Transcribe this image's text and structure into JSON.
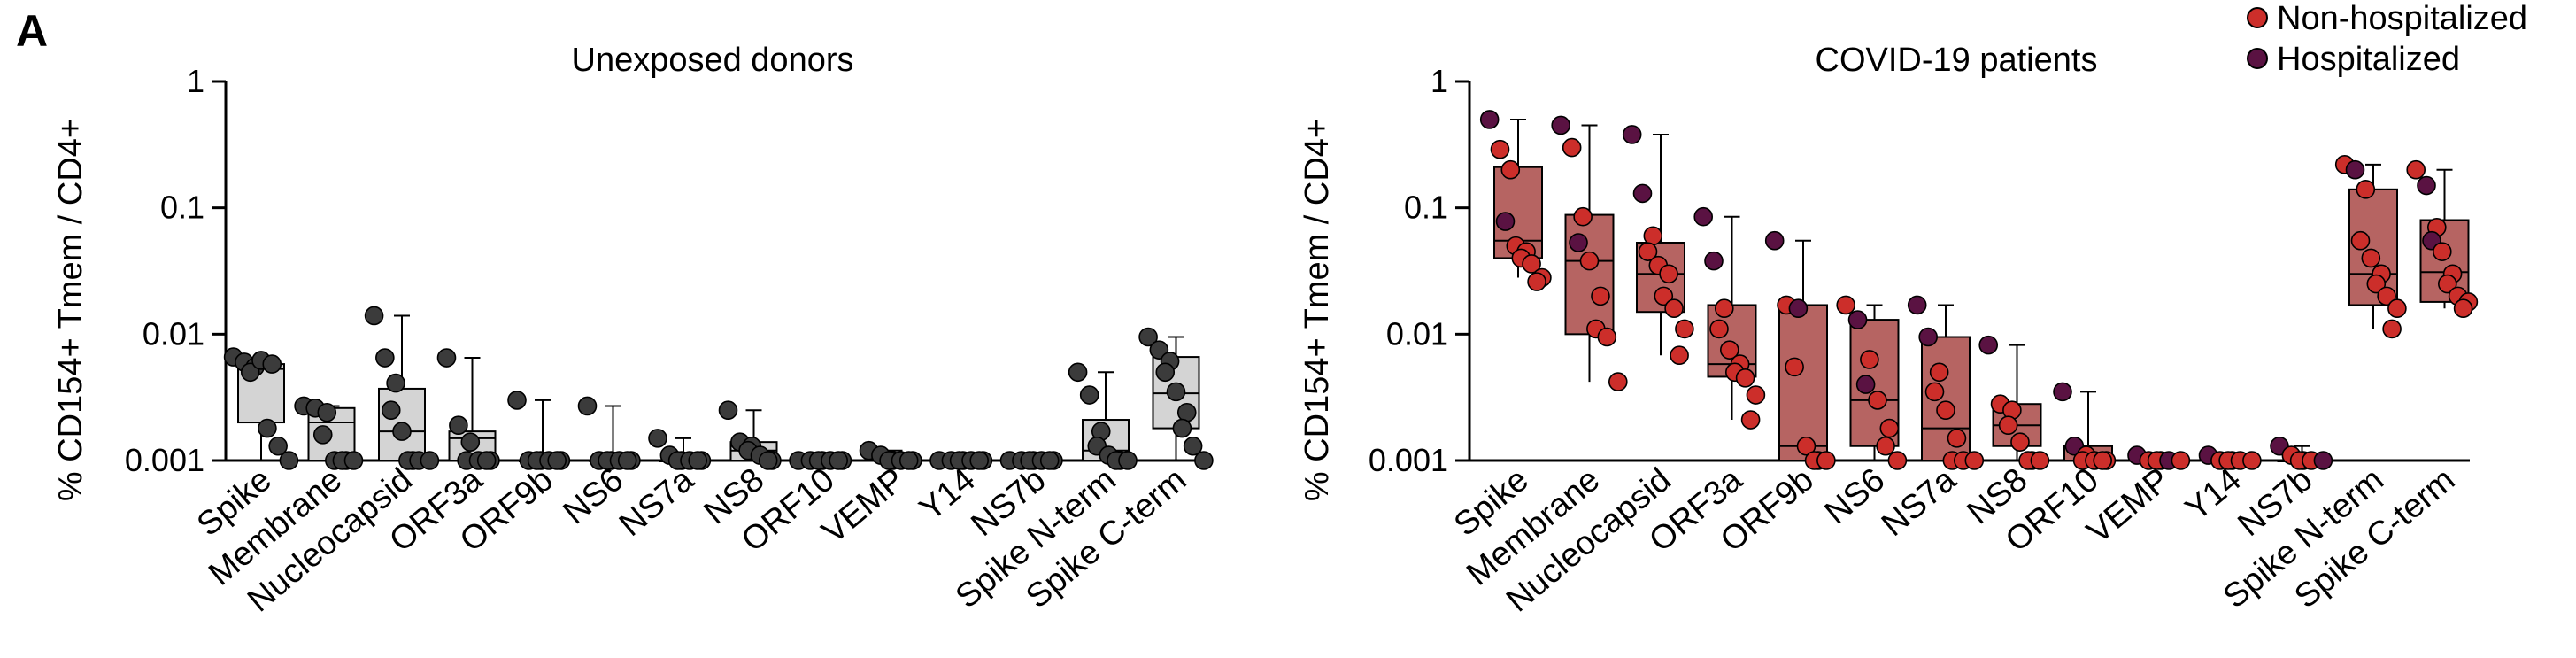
{
  "panel_label": "A",
  "chart_data": [
    {
      "type": "box",
      "title": "Unexposed donors",
      "xlabel": "",
      "ylabel": "% CD154+ Tmem / CD4+",
      "yscale": "log",
      "ylim": [
        0.001,
        1
      ],
      "yticks": [
        {
          "v": 0.001,
          "label": "0.001"
        },
        {
          "v": 0.01,
          "label": "0.01"
        },
        {
          "v": 0.1,
          "label": "0.1"
        },
        {
          "v": 1,
          "label": "1"
        }
      ],
      "grid": false,
      "box_color": "#d4d4d4",
      "point_color": "#3b3b3b",
      "categories": [
        "Spike",
        "Membrane",
        "Nucleocapsid",
        "ORF3a",
        "ORF9b",
        "NS6",
        "NS7a",
        "NS8",
        "ORF10",
        "VEMP",
        "Y14",
        "NS7b",
        "Spike N-term",
        "Spike C-term"
      ],
      "boxes": [
        {
          "min": 0.001,
          "q1": 0.002,
          "median": 0.0053,
          "q3": 0.0058,
          "max": 0.0065
        },
        {
          "min": 0.001,
          "q1": 0.001,
          "median": 0.002,
          "q3": 0.0026,
          "max": 0.0027
        },
        {
          "min": 0.001,
          "q1": 0.001,
          "median": 0.0017,
          "q3": 0.0037,
          "max": 0.014
        },
        {
          "min": 0.001,
          "q1": 0.001,
          "median": 0.0015,
          "q3": 0.0017,
          "max": 0.0065
        },
        {
          "min": 0.001,
          "q1": 0.001,
          "median": 0.001,
          "q3": 0.001,
          "max": 0.003
        },
        {
          "min": 0.001,
          "q1": 0.001,
          "median": 0.001,
          "q3": 0.001,
          "max": 0.0027
        },
        {
          "min": 0.001,
          "q1": 0.001,
          "median": 0.001,
          "q3": 0.001,
          "max": 0.0015
        },
        {
          "min": 0.001,
          "q1": 0.001,
          "median": 0.0012,
          "q3": 0.0014,
          "max": 0.0025
        },
        {
          "min": 0.001,
          "q1": 0.001,
          "median": 0.001,
          "q3": 0.001,
          "max": 0.001
        },
        {
          "min": 0.001,
          "q1": 0.001,
          "median": 0.001,
          "q3": 0.0011,
          "max": 0.0012
        },
        {
          "min": 0.001,
          "q1": 0.001,
          "median": 0.001,
          "q3": 0.001,
          "max": 0.001
        },
        {
          "min": 0.001,
          "q1": 0.001,
          "median": 0.001,
          "q3": 0.001,
          "max": 0.001
        },
        {
          "min": 0.001,
          "q1": 0.001,
          "median": 0.0012,
          "q3": 0.0021,
          "max": 0.005
        },
        {
          "min": 0.001,
          "q1": 0.0018,
          "median": 0.0034,
          "q3": 0.0066,
          "max": 0.0095
        }
      ],
      "points": [
        [
          0.0066,
          0.006,
          0.0055,
          0.005,
          0.0062,
          0.0058,
          0.0018,
          0.0013,
          0.001
        ],
        [
          0.0027,
          0.0026,
          0.0024,
          0.0016,
          0.001,
          0.001,
          0.001,
          0.001
        ],
        [
          0.014,
          0.0065,
          0.0041,
          0.0025,
          0.0017,
          0.001,
          0.001,
          0.001,
          0.001
        ],
        [
          0.0065,
          0.0019,
          0.0014,
          0.001,
          0.001,
          0.001,
          0.001
        ],
        [
          0.003,
          0.001,
          0.001,
          0.001,
          0.001,
          0.001,
          0.001
        ],
        [
          0.0027,
          0.001,
          0.001,
          0.001,
          0.001,
          0.001,
          0.001
        ],
        [
          0.0015,
          0.0011,
          0.001,
          0.001,
          0.001,
          0.001,
          0.001
        ],
        [
          0.0025,
          0.0014,
          0.0013,
          0.0012,
          0.0011,
          0.001,
          0.001
        ],
        [
          0.001,
          0.001,
          0.001,
          0.001,
          0.001,
          0.001,
          0.001
        ],
        [
          0.0012,
          0.0011,
          0.001,
          0.001,
          0.001,
          0.001,
          0.001
        ],
        [
          0.001,
          0.001,
          0.001,
          0.001,
          0.001,
          0.001,
          0.001
        ],
        [
          0.001,
          0.001,
          0.001,
          0.001,
          0.001,
          0.001,
          0.001
        ],
        [
          0.005,
          0.0033,
          0.0017,
          0.0013,
          0.0011,
          0.001,
          0.001,
          0.001
        ],
        [
          0.0095,
          0.0075,
          0.0061,
          0.005,
          0.0035,
          0.0024,
          0.0018,
          0.0013,
          0.001
        ]
      ]
    },
    {
      "type": "box",
      "title": "COVID-19 patients",
      "xlabel": "",
      "ylabel": "% CD154+ Tmem / CD4+",
      "yscale": "log",
      "ylim": [
        0.001,
        1
      ],
      "yticks": [
        {
          "v": 0.001,
          "label": "0.001"
        },
        {
          "v": 0.01,
          "label": "0.01"
        },
        {
          "v": 0.1,
          "label": "0.1"
        },
        {
          "v": 1,
          "label": "1"
        }
      ],
      "grid": false,
      "box_color": "#b66462",
      "legend": {
        "position": "top-right",
        "entries": [
          {
            "name": "Non-hospitalized",
            "color": "#cc2e2a"
          },
          {
            "name": "Hospitalized",
            "color": "#5a1242"
          }
        ]
      },
      "categories": [
        "Spike",
        "Membrane",
        "Nucleocapsid",
        "ORF3a",
        "ORF9b",
        "NS6",
        "NS7a",
        "NS8",
        "ORF10",
        "VEMP",
        "Y14",
        "NS7b",
        "Spike N-term",
        "Spike C-term"
      ],
      "boxes": [
        {
          "min": 0.028,
          "q1": 0.04,
          "median": 0.055,
          "q3": 0.21,
          "max": 0.5
        },
        {
          "min": 0.0042,
          "q1": 0.01,
          "median": 0.038,
          "q3": 0.088,
          "max": 0.45
        },
        {
          "min": 0.0068,
          "q1": 0.015,
          "median": 0.03,
          "q3": 0.053,
          "max": 0.38
        },
        {
          "min": 0.0021,
          "q1": 0.0046,
          "median": 0.0058,
          "q3": 0.017,
          "max": 0.085
        },
        {
          "min": 0.001,
          "q1": 0.001,
          "median": 0.0013,
          "q3": 0.017,
          "max": 0.055
        },
        {
          "min": 0.001,
          "q1": 0.0013,
          "median": 0.003,
          "q3": 0.013,
          "max": 0.017
        },
        {
          "min": 0.001,
          "q1": 0.001,
          "median": 0.0018,
          "q3": 0.0095,
          "max": 0.017
        },
        {
          "min": 0.001,
          "q1": 0.0013,
          "median": 0.0019,
          "q3": 0.0028,
          "max": 0.0082
        },
        {
          "min": 0.001,
          "q1": 0.001,
          "median": 0.001,
          "q3": 0.0013,
          "max": 0.0035
        },
        {
          "min": 0.001,
          "q1": 0.001,
          "median": 0.001,
          "q3": 0.001,
          "max": 0.0011
        },
        {
          "min": 0.001,
          "q1": 0.001,
          "median": 0.001,
          "q3": 0.001,
          "max": 0.0011
        },
        {
          "min": 0.001,
          "q1": 0.001,
          "median": 0.001,
          "q3": 0.001,
          "max": 0.0013
        },
        {
          "min": 0.011,
          "q1": 0.017,
          "median": 0.03,
          "q3": 0.14,
          "max": 0.22
        },
        {
          "min": 0.016,
          "q1": 0.018,
          "median": 0.031,
          "q3": 0.08,
          "max": 0.2
        }
      ],
      "points": [
        [
          {
            "y": 0.5,
            "g": 1
          },
          {
            "y": 0.29,
            "g": 0
          },
          {
            "y": 0.2,
            "g": 0
          },
          {
            "y": 0.078,
            "g": 1
          },
          {
            "y": 0.05,
            "g": 0
          },
          {
            "y": 0.045,
            "g": 0
          },
          {
            "y": 0.04,
            "g": 0
          },
          {
            "y": 0.036,
            "g": 0
          },
          {
            "y": 0.028,
            "g": 0
          },
          {
            "y": 0.026,
            "g": 0
          }
        ],
        [
          {
            "y": 0.45,
            "g": 1
          },
          {
            "y": 0.3,
            "g": 0
          },
          {
            "y": 0.085,
            "g": 0
          },
          {
            "y": 0.053,
            "g": 1
          },
          {
            "y": 0.038,
            "g": 0
          },
          {
            "y": 0.02,
            "g": 0
          },
          {
            "y": 0.011,
            "g": 0
          },
          {
            "y": 0.0095,
            "g": 0
          },
          {
            "y": 0.0042,
            "g": 0
          }
        ],
        [
          {
            "y": 0.38,
            "g": 1
          },
          {
            "y": 0.13,
            "g": 1
          },
          {
            "y": 0.06,
            "g": 0
          },
          {
            "y": 0.045,
            "g": 0
          },
          {
            "y": 0.035,
            "g": 0
          },
          {
            "y": 0.03,
            "g": 0
          },
          {
            "y": 0.02,
            "g": 0
          },
          {
            "y": 0.016,
            "g": 0
          },
          {
            "y": 0.011,
            "g": 0
          },
          {
            "y": 0.0068,
            "g": 0
          }
        ],
        [
          {
            "y": 0.085,
            "g": 1
          },
          {
            "y": 0.038,
            "g": 1
          },
          {
            "y": 0.016,
            "g": 0
          },
          {
            "y": 0.011,
            "g": 0
          },
          {
            "y": 0.0075,
            "g": 0
          },
          {
            "y": 0.0058,
            "g": 0
          },
          {
            "y": 0.005,
            "g": 0
          },
          {
            "y": 0.0045,
            "g": 0
          },
          {
            "y": 0.0033,
            "g": 0
          },
          {
            "y": 0.0021,
            "g": 0
          }
        ],
        [
          {
            "y": 0.055,
            "g": 1
          },
          {
            "y": 0.017,
            "g": 0
          },
          {
            "y": 0.016,
            "g": 1
          },
          {
            "y": 0.0055,
            "g": 0
          },
          {
            "y": 0.0013,
            "g": 0
          },
          {
            "y": 0.001,
            "g": 0
          },
          {
            "y": 0.001,
            "g": 0
          },
          {
            "y": 0.001,
            "g": 0
          }
        ],
        [
          {
            "y": 0.017,
            "g": 0
          },
          {
            "y": 0.013,
            "g": 1
          },
          {
            "y": 0.0063,
            "g": 0
          },
          {
            "y": 0.004,
            "g": 1
          },
          {
            "y": 0.003,
            "g": 0
          },
          {
            "y": 0.0018,
            "g": 0
          },
          {
            "y": 0.0013,
            "g": 0
          },
          {
            "y": 0.001,
            "g": 0
          }
        ],
        [
          {
            "y": 0.017,
            "g": 1
          },
          {
            "y": 0.0095,
            "g": 1
          },
          {
            "y": 0.005,
            "g": 0
          },
          {
            "y": 0.0035,
            "g": 0
          },
          {
            "y": 0.0025,
            "g": 0
          },
          {
            "y": 0.0015,
            "g": 0
          },
          {
            "y": 0.001,
            "g": 0
          },
          {
            "y": 0.001,
            "g": 0
          },
          {
            "y": 0.001,
            "g": 0
          }
        ],
        [
          {
            "y": 0.0082,
            "g": 1
          },
          {
            "y": 0.0028,
            "g": 0
          },
          {
            "y": 0.0025,
            "g": 0
          },
          {
            "y": 0.0019,
            "g": 0
          },
          {
            "y": 0.0014,
            "g": 0
          },
          {
            "y": 0.001,
            "g": 0
          },
          {
            "y": 0.001,
            "g": 0
          },
          {
            "y": 0.001,
            "g": 0
          }
        ],
        [
          {
            "y": 0.0035,
            "g": 1
          },
          {
            "y": 0.0013,
            "g": 1
          },
          {
            "y": 0.0011,
            "g": 0
          },
          {
            "y": 0.001,
            "g": 0
          },
          {
            "y": 0.001,
            "g": 0
          },
          {
            "y": 0.001,
            "g": 0
          },
          {
            "y": 0.001,
            "g": 0
          }
        ],
        [
          {
            "y": 0.0011,
            "g": 1
          },
          {
            "y": 0.001,
            "g": 0
          },
          {
            "y": 0.001,
            "g": 0
          },
          {
            "y": 0.001,
            "g": 0
          },
          {
            "y": 0.001,
            "g": 1
          },
          {
            "y": 0.001,
            "g": 0
          }
        ],
        [
          {
            "y": 0.0011,
            "g": 1
          },
          {
            "y": 0.001,
            "g": 0
          },
          {
            "y": 0.001,
            "g": 0
          },
          {
            "y": 0.001,
            "g": 0
          },
          {
            "y": 0.001,
            "g": 0
          },
          {
            "y": 0.001,
            "g": 0
          }
        ],
        [
          {
            "y": 0.0013,
            "g": 1
          },
          {
            "y": 0.0011,
            "g": 0
          },
          {
            "y": 0.001,
            "g": 0
          },
          {
            "y": 0.001,
            "g": 0
          },
          {
            "y": 0.001,
            "g": 0
          },
          {
            "y": 0.001,
            "g": 1
          }
        ],
        [
          {
            "y": 0.22,
            "g": 0
          },
          {
            "y": 0.2,
            "g": 1
          },
          {
            "y": 0.14,
            "g": 0
          },
          {
            "y": 0.055,
            "g": 0
          },
          {
            "y": 0.04,
            "g": 0
          },
          {
            "y": 0.03,
            "g": 0
          },
          {
            "y": 0.025,
            "g": 0
          },
          {
            "y": 0.02,
            "g": 0
          },
          {
            "y": 0.016,
            "g": 0
          },
          {
            "y": 0.011,
            "g": 0
          }
        ],
        [
          {
            "y": 0.2,
            "g": 0
          },
          {
            "y": 0.15,
            "g": 1
          },
          {
            "y": 0.07,
            "g": 0
          },
          {
            "y": 0.055,
            "g": 1
          },
          {
            "y": 0.045,
            "g": 0
          },
          {
            "y": 0.03,
            "g": 0
          },
          {
            "y": 0.025,
            "g": 0
          },
          {
            "y": 0.02,
            "g": 0
          },
          {
            "y": 0.018,
            "g": 0
          },
          {
            "y": 0.016,
            "g": 0
          }
        ]
      ]
    }
  ]
}
